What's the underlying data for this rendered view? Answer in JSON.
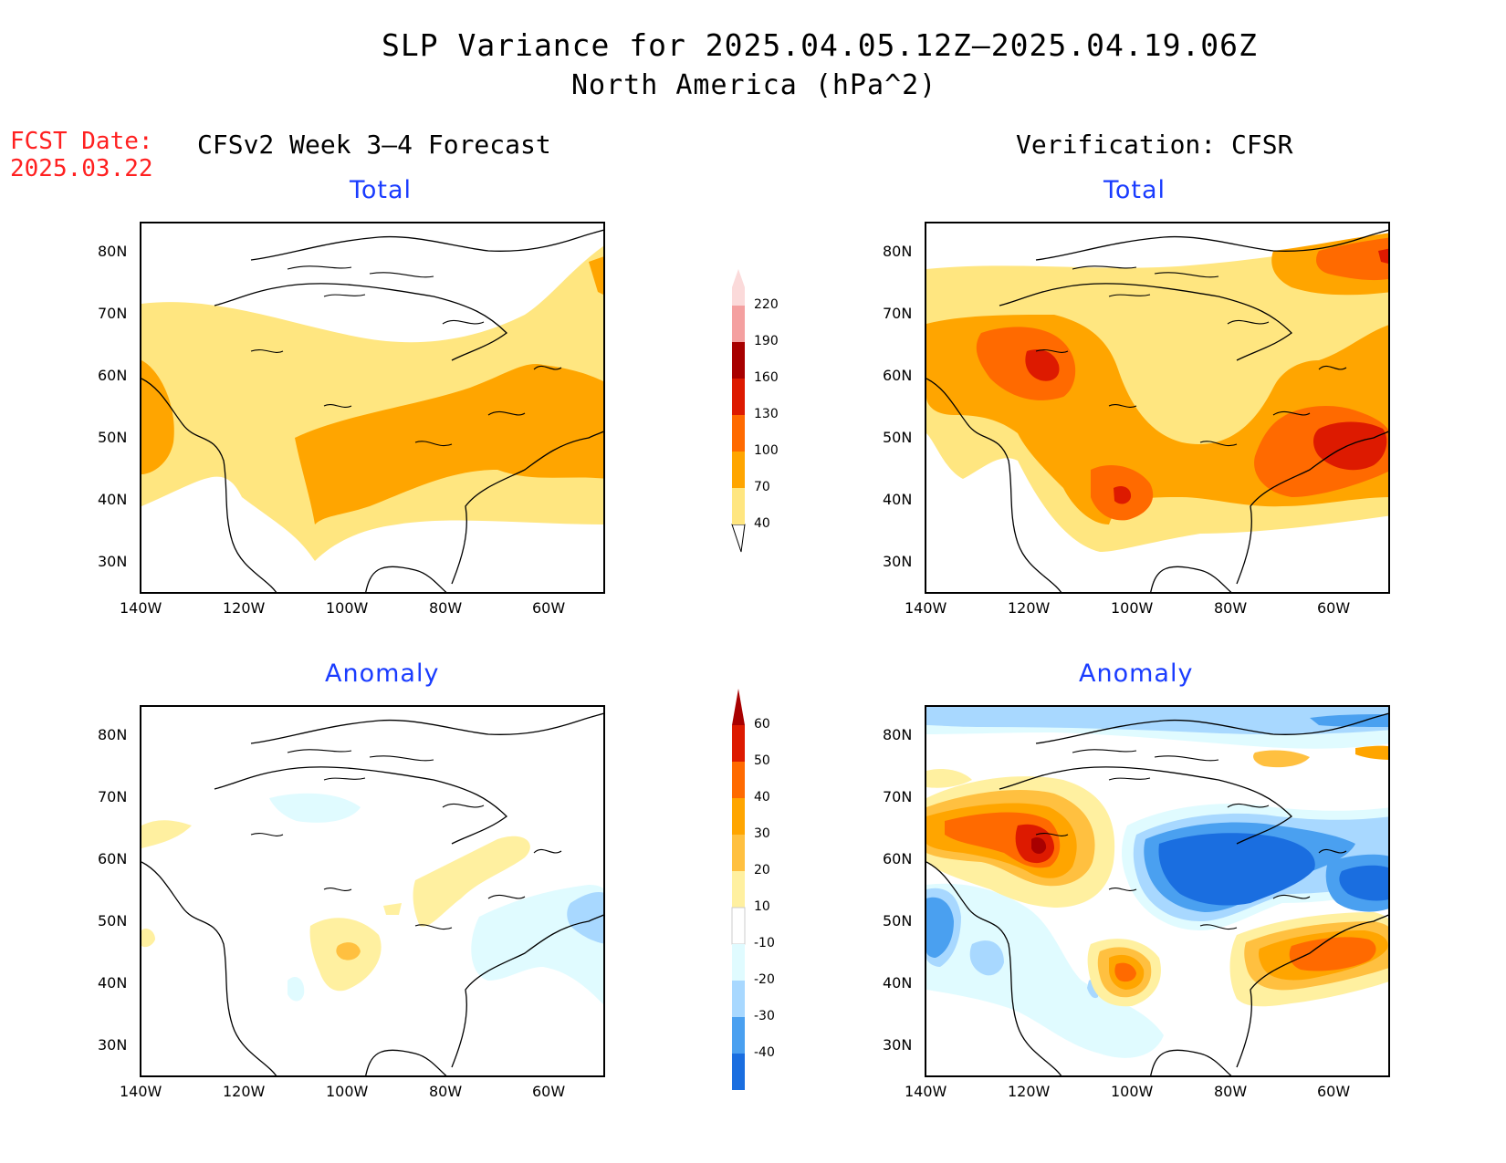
{
  "title": "SLP Variance for 2025.04.05.12Z—2025.04.19.06Z",
  "subtitle": "North America (hPa^2)",
  "fcst_label": "FCST Date:",
  "fcst_date": "2025.03.22",
  "left_header": "CFSv2 Week 3—4 Forecast",
  "right_header": "Verification: CFSR",
  "panels": [
    {
      "id": "fcst-total",
      "title": "Total"
    },
    {
      "id": "verif-total",
      "title": "Total"
    },
    {
      "id": "fcst-anomaly",
      "title": "Anomaly"
    },
    {
      "id": "verif-anomaly",
      "title": "Anomaly"
    }
  ],
  "lat_labels": [
    "80N",
    "70N",
    "60N",
    "50N",
    "40N",
    "30N"
  ],
  "lon_labels": [
    "140W",
    "120W",
    "100W",
    "80W",
    "60W"
  ],
  "colorbar_total": {
    "levels": [
      "40",
      "70",
      "100",
      "130",
      "160",
      "190",
      "220"
    ],
    "colors": [
      "#ffe680",
      "#ffa500",
      "#ff6a00",
      "#dd1a00",
      "#a80000",
      "#f4a0a0",
      "#fbdada"
    ]
  },
  "colorbar_anomaly": {
    "levels": [
      "60",
      "50",
      "40",
      "30",
      "20",
      "10",
      "-10",
      "-20",
      "-30",
      "-40"
    ],
    "colors_top_to_bottom": [
      "#a80000",
      "#dd1a00",
      "#ff6a00",
      "#ffa500",
      "#ffc040",
      "#fff0a0",
      "#ffffff",
      "#e0fbff",
      "#a8d8ff",
      "#4aa0f0",
      "#1a6ee0",
      "#0a50c8"
    ]
  },
  "colors": {
    "title_blue": "#1a3cff",
    "fcst_red": "#ff2020"
  }
}
